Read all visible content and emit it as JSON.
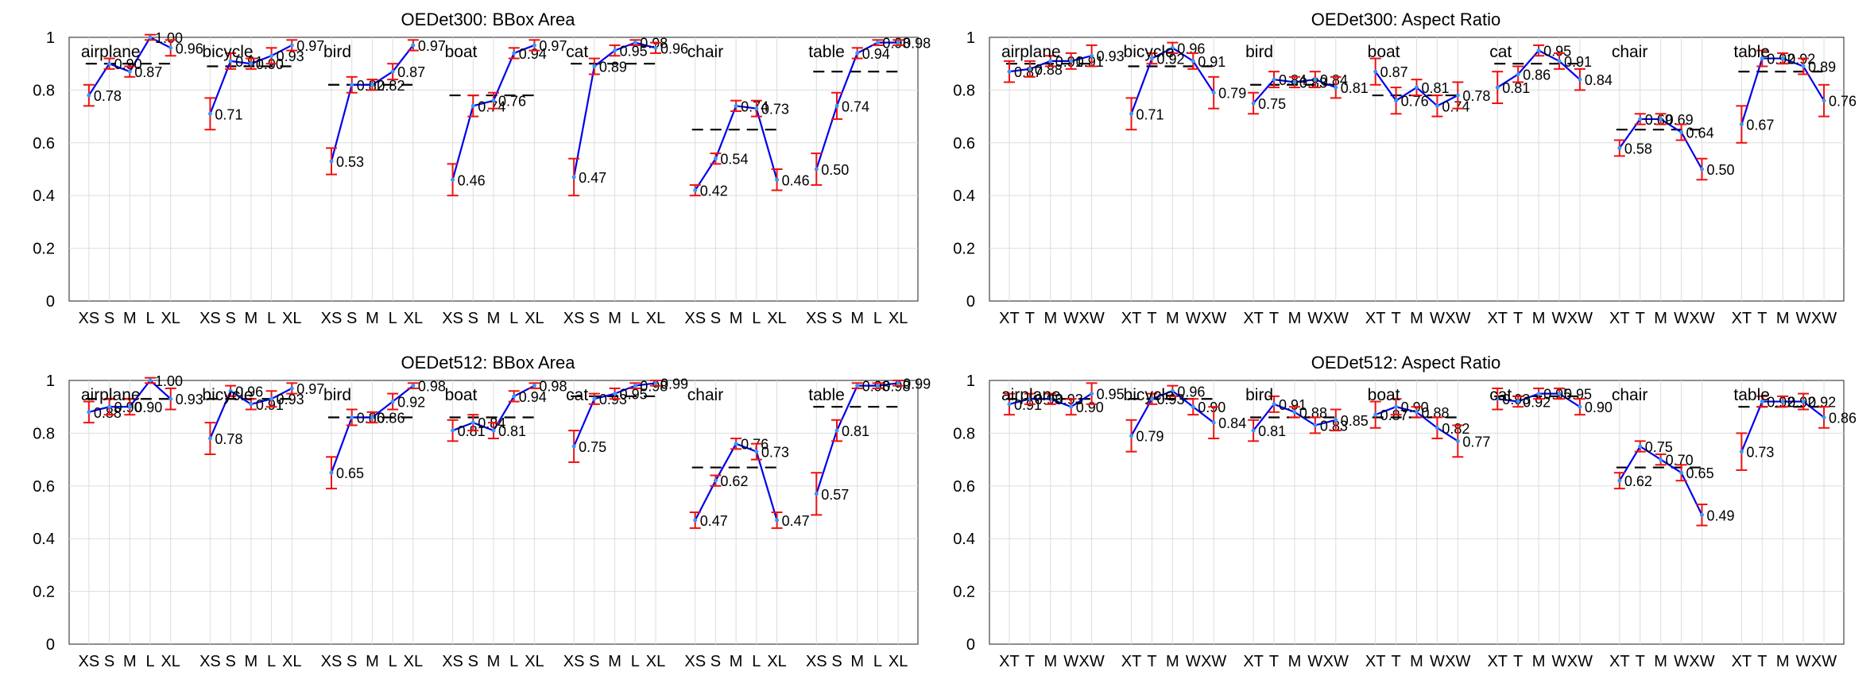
{
  "colors": {
    "line": "#0000ee",
    "error": "#ee1111",
    "point": "#3399ff",
    "ref": "#000000",
    "grid": "#dddddd",
    "axis": "#444444"
  },
  "y_ticks": [
    "0",
    "0.2",
    "0.4",
    "0.6",
    "0.8",
    "1"
  ],
  "chart_data": [
    {
      "type": "line",
      "title": "OEDet300: BBox Area",
      "ylim": [
        0,
        1
      ],
      "grid": true,
      "x_tick_labels": [
        "XS",
        "S",
        "M",
        "L",
        "XL"
      ],
      "groups": [
        {
          "name": "airplane",
          "values": [
            0.78,
            0.9,
            0.87,
            1.0,
            0.96
          ],
          "value_labels": [
            "0.78",
            "0.90",
            "0.87",
            "1.00",
            "0.96"
          ],
          "err": [
            0.04,
            0.02,
            0.02,
            0.01,
            0.03
          ],
          "ref": 0.9
        },
        {
          "name": "bicycle",
          "values": [
            0.71,
            0.91,
            0.9,
            0.93,
            0.97
          ],
          "value_labels": [
            "0.71",
            "0.91",
            "0.90",
            "0.93",
            "0.97"
          ],
          "err": [
            0.06,
            0.03,
            0.02,
            0.03,
            0.02
          ],
          "ref": 0.89
        },
        {
          "name": "bird",
          "values": [
            0.53,
            0.82,
            0.82,
            0.87,
            0.97
          ],
          "value_labels": [
            "0.53",
            "0.82",
            "0.82",
            "0.87",
            "0.97"
          ],
          "err": [
            0.05,
            0.03,
            0.02,
            0.03,
            0.02
          ],
          "ref": 0.82
        },
        {
          "name": "boat",
          "values": [
            0.46,
            0.74,
            0.76,
            0.94,
            0.97
          ],
          "value_labels": [
            "0.46",
            "0.74",
            "0.76",
            "0.94",
            "0.97"
          ],
          "err": [
            0.06,
            0.04,
            0.03,
            0.02,
            0.02
          ],
          "ref": 0.78
        },
        {
          "name": "cat",
          "values": [
            0.47,
            0.89,
            0.95,
            0.98,
            0.96
          ],
          "value_labels": [
            "0.47",
            "0.89",
            "0.95",
            "0.98",
            "0.96"
          ],
          "err": [
            0.07,
            0.03,
            0.02,
            0.01,
            0.02
          ],
          "ref": 0.9
        },
        {
          "name": "chair",
          "values": [
            0.42,
            0.54,
            0.74,
            0.73,
            0.46
          ],
          "value_labels": [
            "0.42",
            "0.54",
            "0.74",
            "0.73",
            "0.46"
          ],
          "err": [
            0.02,
            0.02,
            0.02,
            0.03,
            0.04
          ],
          "ref": 0.65
        },
        {
          "name": "table",
          "values": [
            0.5,
            0.74,
            0.94,
            0.98,
            0.98
          ],
          "value_labels": [
            "0.50",
            "0.74",
            "0.94",
            "0.98",
            "0.98"
          ],
          "err": [
            0.06,
            0.05,
            0.02,
            0.01,
            0.01
          ],
          "ref": 0.87
        }
      ]
    },
    {
      "type": "line",
      "title": "OEDet300: Aspect Ratio",
      "ylim": [
        0,
        1
      ],
      "grid": true,
      "x_tick_labels": [
        "XT",
        "T",
        "M",
        "W",
        "XW"
      ],
      "groups": [
        {
          "name": "airplane",
          "values": [
            0.87,
            0.88,
            0.91,
            0.91,
            0.93
          ],
          "value_labels": [
            "0.87",
            "0.88",
            "0.91",
            "0.91",
            "0.93"
          ],
          "err": [
            0.04,
            0.03,
            0.02,
            0.03,
            0.04
          ],
          "ref": 0.9
        },
        {
          "name": "bicycle",
          "values": [
            0.71,
            0.92,
            0.96,
            0.91,
            0.79
          ],
          "value_labels": [
            "0.71",
            "0.92",
            "0.96",
            "0.91",
            "0.79"
          ],
          "err": [
            0.06,
            0.02,
            0.02,
            0.03,
            0.06
          ],
          "ref": 0.89
        },
        {
          "name": "bird",
          "values": [
            0.75,
            0.84,
            0.83,
            0.84,
            0.81
          ],
          "value_labels": [
            "0.75",
            "0.84",
            "0.83",
            "0.84",
            "0.81"
          ],
          "err": [
            0.04,
            0.03,
            0.02,
            0.03,
            0.04
          ],
          "ref": 0.82
        },
        {
          "name": "boat",
          "values": [
            0.87,
            0.76,
            0.81,
            0.74,
            0.78
          ],
          "value_labels": [
            "0.87",
            "0.76",
            "0.81",
            "0.74",
            "0.78"
          ],
          "err": [
            0.05,
            0.05,
            0.03,
            0.04,
            0.05
          ],
          "ref": 0.78
        },
        {
          "name": "cat",
          "values": [
            0.81,
            0.86,
            0.95,
            0.91,
            0.84
          ],
          "value_labels": [
            "0.81",
            "0.86",
            "0.95",
            "0.91",
            "0.84"
          ],
          "err": [
            0.06,
            0.03,
            0.02,
            0.03,
            0.04
          ],
          "ref": 0.9
        },
        {
          "name": "chair",
          "values": [
            0.58,
            0.69,
            0.69,
            0.64,
            0.5
          ],
          "value_labels": [
            "0.58",
            "0.69",
            "0.69",
            "0.64",
            "0.50"
          ],
          "err": [
            0.03,
            0.02,
            0.02,
            0.03,
            0.04
          ],
          "ref": 0.65
        },
        {
          "name": "table",
          "values": [
            0.67,
            0.92,
            0.92,
            0.89,
            0.76
          ],
          "value_labels": [
            "0.67",
            "0.92",
            "0.92",
            "0.89",
            "0.76"
          ],
          "err": [
            0.07,
            0.03,
            0.02,
            0.03,
            0.06
          ],
          "ref": 0.87
        }
      ]
    },
    {
      "type": "line",
      "title": "OEDet512: BBox Area",
      "ylim": [
        0,
        1
      ],
      "grid": true,
      "x_tick_labels": [
        "XS",
        "S",
        "M",
        "L",
        "XL"
      ],
      "groups": [
        {
          "name": "airplane",
          "values": [
            0.88,
            0.9,
            0.9,
            1.0,
            0.93
          ],
          "value_labels": [
            "0.88",
            "0.90",
            "0.90",
            "1.00",
            "0.93"
          ],
          "err": [
            0.04,
            0.03,
            0.03,
            0.01,
            0.04
          ],
          "ref": 0.93
        },
        {
          "name": "bicycle",
          "values": [
            0.78,
            0.96,
            0.91,
            0.93,
            0.97
          ],
          "value_labels": [
            "0.78",
            "0.96",
            "0.91",
            "0.93",
            "0.97"
          ],
          "err": [
            0.06,
            0.02,
            0.02,
            0.03,
            0.02
          ],
          "ref": 0.93
        },
        {
          "name": "bird",
          "values": [
            0.65,
            0.86,
            0.86,
            0.92,
            0.98
          ],
          "value_labels": [
            "0.65",
            "0.86",
            "0.86",
            "0.92",
            "0.98"
          ],
          "err": [
            0.06,
            0.03,
            0.02,
            0.03,
            0.01
          ],
          "ref": 0.86
        },
        {
          "name": "boat",
          "values": [
            0.81,
            0.84,
            0.81,
            0.94,
            0.98
          ],
          "value_labels": [
            "0.81",
            "0.84",
            "0.81",
            "0.94",
            "0.98"
          ],
          "err": [
            0.04,
            0.03,
            0.03,
            0.02,
            0.01
          ],
          "ref": 0.86
        },
        {
          "name": "cat",
          "values": [
            0.75,
            0.93,
            0.95,
            0.98,
            0.99
          ],
          "value_labels": [
            "0.75",
            "0.93",
            "0.95",
            "0.98",
            "0.99"
          ],
          "err": [
            0.06,
            0.02,
            0.02,
            0.01,
            0.01
          ],
          "ref": 0.94
        },
        {
          "name": "chair",
          "values": [
            0.47,
            0.62,
            0.76,
            0.73,
            0.47
          ],
          "value_labels": [
            "0.47",
            "0.62",
            "0.76",
            "0.73",
            "0.47"
          ],
          "err": [
            0.03,
            0.02,
            0.02,
            0.03,
            0.03
          ],
          "ref": 0.67
        },
        {
          "name": "table",
          "values": [
            0.57,
            0.81,
            0.98,
            0.98,
            0.99
          ],
          "value_labels": [
            "0.57",
            "0.81",
            "0.98",
            "0.98",
            "0.99"
          ],
          "err": [
            0.08,
            0.04,
            0.01,
            0.01,
            0.01
          ],
          "ref": 0.9
        }
      ]
    },
    {
      "type": "line",
      "title": "OEDet512: Aspect Ratio",
      "ylim": [
        0,
        1
      ],
      "grid": true,
      "x_tick_labels": [
        "XT",
        "T",
        "M",
        "W",
        "XW"
      ],
      "groups": [
        {
          "name": "airplane",
          "values": [
            0.91,
            0.93,
            0.93,
            0.9,
            0.95
          ],
          "value_labels": [
            "0.91",
            "0.93",
            "0.93",
            "0.90",
            "0.95"
          ],
          "err": [
            0.04,
            0.02,
            0.02,
            0.03,
            0.04
          ],
          "ref": 0.93
        },
        {
          "name": "bicycle",
          "values": [
            0.79,
            0.93,
            0.96,
            0.9,
            0.84
          ],
          "value_labels": [
            "0.79",
            "0.93",
            "0.96",
            "0.90",
            "0.84"
          ],
          "err": [
            0.06,
            0.02,
            0.02,
            0.03,
            0.06
          ],
          "ref": 0.93
        },
        {
          "name": "bird",
          "values": [
            0.81,
            0.91,
            0.88,
            0.83,
            0.85
          ],
          "value_labels": [
            "0.81",
            "0.91",
            "0.88",
            "0.83",
            "0.85"
          ],
          "err": [
            0.04,
            0.03,
            0.02,
            0.03,
            0.04
          ],
          "ref": 0.86
        },
        {
          "name": "boat",
          "values": [
            0.87,
            0.9,
            0.88,
            0.82,
            0.77
          ],
          "value_labels": [
            "0.87",
            "0.90",
            "0.88",
            "0.82",
            "0.77"
          ],
          "err": [
            0.05,
            0.03,
            0.02,
            0.04,
            0.06
          ],
          "ref": 0.86
        },
        {
          "name": "cat",
          "values": [
            0.93,
            0.92,
            0.95,
            0.95,
            0.9
          ],
          "value_labels": [
            "0.93",
            "0.92",
            "0.95",
            "0.95",
            "0.90"
          ],
          "err": [
            0.04,
            0.02,
            0.02,
            0.02,
            0.03
          ],
          "ref": 0.94
        },
        {
          "name": "chair",
          "values": [
            0.62,
            0.75,
            0.7,
            0.65,
            0.49
          ],
          "value_labels": [
            "0.62",
            "0.75",
            "0.70",
            "0.65",
            "0.49"
          ],
          "err": [
            0.03,
            0.02,
            0.02,
            0.03,
            0.04
          ],
          "ref": 0.67
        },
        {
          "name": "table",
          "values": [
            0.73,
            0.92,
            0.92,
            0.92,
            0.86
          ],
          "value_labels": [
            "0.73",
            "0.92",
            "0.92",
            "0.92",
            "0.86"
          ],
          "err": [
            0.07,
            0.02,
            0.02,
            0.03,
            0.04
          ],
          "ref": 0.9
        }
      ]
    }
  ]
}
